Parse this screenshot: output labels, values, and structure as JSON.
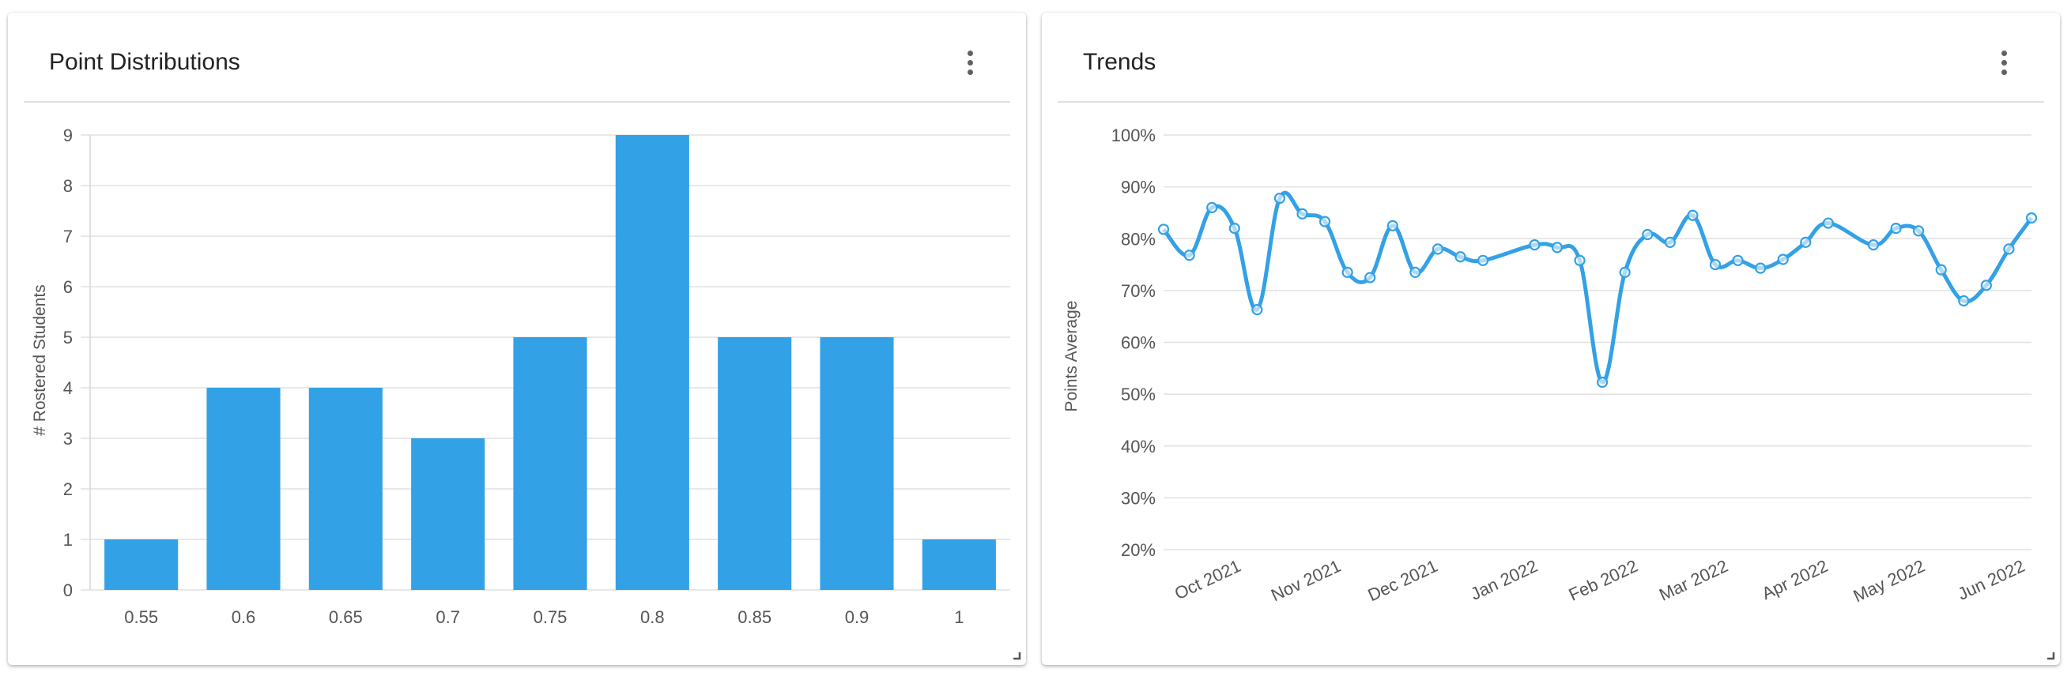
{
  "cards": {
    "distribution": {
      "title": "Point Distributions"
    },
    "trends": {
      "title": "Trends"
    }
  },
  "chart_data": [
    {
      "type": "bar",
      "title": "Point Distributions",
      "xlabel": "",
      "ylabel": "# Rostered Students",
      "categories": [
        "0.55",
        "0.6",
        "0.65",
        "0.7",
        "0.75",
        "0.8",
        "0.85",
        "0.9",
        "1"
      ],
      "values": [
        1,
        4,
        4,
        3,
        5,
        9,
        5,
        5,
        1
      ],
      "ylim": [
        0,
        9
      ],
      "yticks": [
        0,
        1,
        2,
        3,
        4,
        5,
        6,
        7,
        8,
        9
      ],
      "grid": true,
      "color": "#33a1e6"
    },
    {
      "type": "line",
      "title": "Trends",
      "xlabel": "",
      "ylabel": "Points Average",
      "ylim": [
        20,
        100
      ],
      "yticks": [
        "20%",
        "30%",
        "40%",
        "50%",
        "60%",
        "70%",
        "80%",
        "90%",
        "100%"
      ],
      "xlim": [
        "2021-09-14",
        "2022-06-10"
      ],
      "xticks": [
        {
          "label": "Oct 2021",
          "date": "2021-10-01"
        },
        {
          "label": "Nov 2021",
          "date": "2021-11-01"
        },
        {
          "label": "Dec 2021",
          "date": "2021-12-01"
        },
        {
          "label": "Jan 2022",
          "date": "2022-01-01"
        },
        {
          "label": "Feb 2022",
          "date": "2022-02-01"
        },
        {
          "label": "Mar 2022",
          "date": "2022-03-01"
        },
        {
          "label": "Apr 2022",
          "date": "2022-04-01"
        },
        {
          "label": "May 2022",
          "date": "2022-05-01"
        },
        {
          "label": "Jun 2022",
          "date": "2022-06-01"
        }
      ],
      "grid": true,
      "color": "#33a1e6",
      "series": [
        {
          "points": [
            {
              "x": "2021-09-14",
              "y": 81.8
            },
            {
              "x": "2021-09-22",
              "y": 76.8
            },
            {
              "x": "2021-09-29",
              "y": 86.0
            },
            {
              "x": "2021-10-06",
              "y": 82.0
            },
            {
              "x": "2021-10-13",
              "y": 66.3
            },
            {
              "x": "2021-10-20",
              "y": 87.8
            },
            {
              "x": "2021-10-27",
              "y": 84.8
            },
            {
              "x": "2021-11-03",
              "y": 83.3
            },
            {
              "x": "2021-11-10",
              "y": 73.5
            },
            {
              "x": "2021-11-17",
              "y": 72.5
            },
            {
              "x": "2021-11-24",
              "y": 82.5
            },
            {
              "x": "2021-12-01",
              "y": 73.5
            },
            {
              "x": "2021-12-08",
              "y": 78.0
            },
            {
              "x": "2021-12-15",
              "y": 76.5
            },
            {
              "x": "2021-12-22",
              "y": 75.8
            },
            {
              "x": "2022-01-07",
              "y": 78.8
            },
            {
              "x": "2022-01-14",
              "y": 78.3
            },
            {
              "x": "2022-01-21",
              "y": 75.8
            },
            {
              "x": "2022-01-28",
              "y": 52.3
            },
            {
              "x": "2022-02-04",
              "y": 73.5
            },
            {
              "x": "2022-02-11",
              "y": 80.8
            },
            {
              "x": "2022-02-18",
              "y": 79.3
            },
            {
              "x": "2022-02-25",
              "y": 84.5
            },
            {
              "x": "2022-03-04",
              "y": 75.0
            },
            {
              "x": "2022-03-11",
              "y": 75.8
            },
            {
              "x": "2022-03-18",
              "y": 74.3
            },
            {
              "x": "2022-03-25",
              "y": 76.0
            },
            {
              "x": "2022-04-01",
              "y": 79.3
            },
            {
              "x": "2022-04-08",
              "y": 83.0
            },
            {
              "x": "2022-04-22",
              "y": 78.8
            },
            {
              "x": "2022-04-29",
              "y": 82.0
            },
            {
              "x": "2022-05-06",
              "y": 81.5
            },
            {
              "x": "2022-05-13",
              "y": 74.0
            },
            {
              "x": "2022-05-20",
              "y": 68.0
            },
            {
              "x": "2022-05-27",
              "y": 71.0
            },
            {
              "x": "2022-06-03",
              "y": 78.0
            },
            {
              "x": "2022-06-10",
              "y": 84.0
            }
          ]
        }
      ]
    }
  ]
}
